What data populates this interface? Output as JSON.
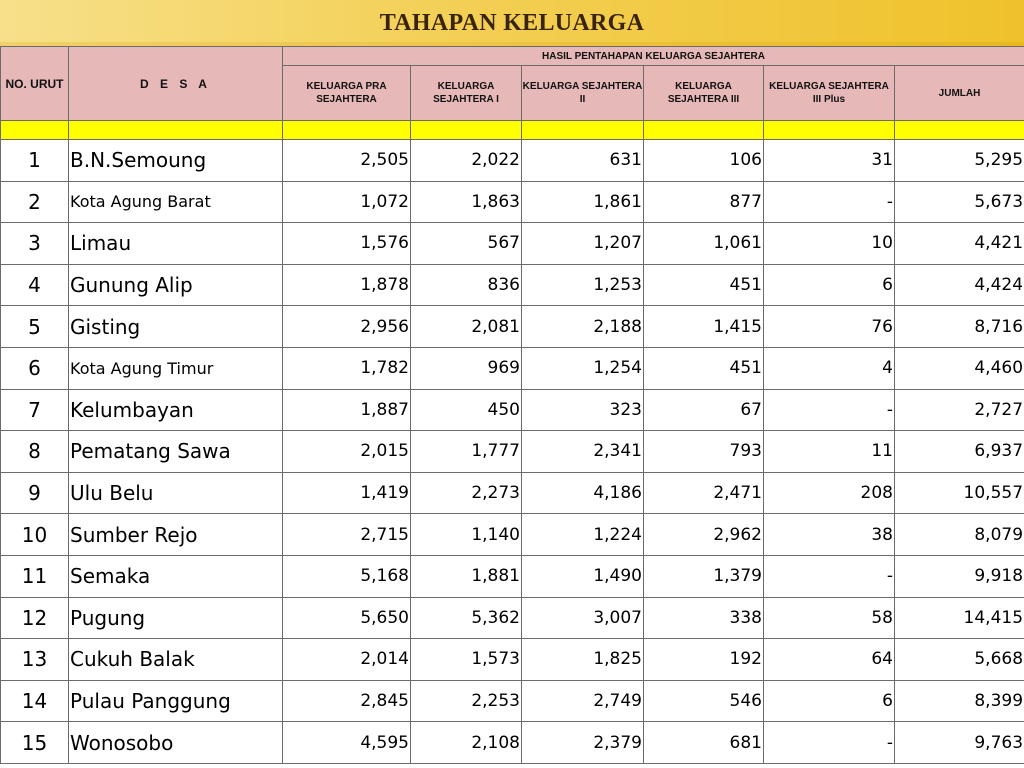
{
  "title": "TAHAPAN KELUARGA",
  "header": {
    "no_urut": "NO. URUT",
    "desa": "D E S A",
    "group": "HASIL PENTAHAPAN KELUARGA SEJAHTERA",
    "columns": [
      "KELUARGA PRA SEJAHTERA",
      "KELUARGA SEJAHTERA I",
      "KELUARGA SEJAHTERA II",
      "KELUARGA SEJAHTERA III",
      "KELUARGA SEJAHTERA III Plus",
      "JUMLAH"
    ]
  },
  "rows": [
    {
      "no": "1",
      "desa": "B.N.Semoung",
      "pra": "2,505",
      "ks1": "2,022",
      "ks2": "631",
      "ks3": "106",
      "ks3p": "31",
      "jumlah": "5,295"
    },
    {
      "no": "2",
      "desa": "Kota Agung Barat",
      "pra": "1,072",
      "ks1": "1,863",
      "ks2": "1,861",
      "ks3": "877",
      "ks3p": "-",
      "jumlah": "5,673"
    },
    {
      "no": "3",
      "desa": "Limau",
      "pra": "1,576",
      "ks1": "567",
      "ks2": "1,207",
      "ks3": "1,061",
      "ks3p": "10",
      "jumlah": "4,421"
    },
    {
      "no": "4",
      "desa": "Gunung Alip",
      "pra": "1,878",
      "ks1": "836",
      "ks2": "1,253",
      "ks3": "451",
      "ks3p": "6",
      "jumlah": "4,424"
    },
    {
      "no": "5",
      "desa": "Gisting",
      "pra": "2,956",
      "ks1": "2,081",
      "ks2": "2,188",
      "ks3": "1,415",
      "ks3p": "76",
      "jumlah": "8,716"
    },
    {
      "no": "6",
      "desa": "Kota Agung Timur",
      "pra": "1,782",
      "ks1": "969",
      "ks2": "1,254",
      "ks3": "451",
      "ks3p": "4",
      "jumlah": "4,460"
    },
    {
      "no": "7",
      "desa": "Kelumbayan",
      "pra": "1,887",
      "ks1": "450",
      "ks2": "323",
      "ks3": "67",
      "ks3p": "-",
      "jumlah": "2,727"
    },
    {
      "no": "8",
      "desa": "Pematang Sawa",
      "pra": "2,015",
      "ks1": "1,777",
      "ks2": "2,341",
      "ks3": "793",
      "ks3p": "11",
      "jumlah": "6,937"
    },
    {
      "no": "9",
      "desa": "Ulu Belu",
      "pra": "1,419",
      "ks1": "2,273",
      "ks2": "4,186",
      "ks3": "2,471",
      "ks3p": "208",
      "jumlah": "10,557"
    },
    {
      "no": "10",
      "desa": "Sumber Rejo",
      "pra": "2,715",
      "ks1": "1,140",
      "ks2": "1,224",
      "ks3": "2,962",
      "ks3p": "38",
      "jumlah": "8,079"
    },
    {
      "no": "11",
      "desa": "Semaka",
      "pra": "5,168",
      "ks1": "1,881",
      "ks2": "1,490",
      "ks3": "1,379",
      "ks3p": "-",
      "jumlah": "9,918"
    },
    {
      "no": "12",
      "desa": "Pugung",
      "pra": "5,650",
      "ks1": "5,362",
      "ks2": "3,007",
      "ks3": "338",
      "ks3p": "58",
      "jumlah": "14,415"
    },
    {
      "no": "13",
      "desa": "Cukuh Balak",
      "pra": "2,014",
      "ks1": "1,573",
      "ks2": "1,825",
      "ks3": "192",
      "ks3p": "64",
      "jumlah": "5,668"
    },
    {
      "no": "14",
      "desa": "Pulau Panggung",
      "pra": "2,845",
      "ks1": "2,253",
      "ks2": "2,749",
      "ks3": "546",
      "ks3p": "6",
      "jumlah": "8,399"
    },
    {
      "no": "15",
      "desa": "Wonosobo",
      "pra": "4,595",
      "ks1": "2,108",
      "ks2": "2,379",
      "ks3": "681",
      "ks3p": "-",
      "jumlah": "9,763"
    }
  ],
  "colors": {
    "header_bg": "#e6b9b8",
    "title_band": "#f3cf54",
    "spacer_row": "#ffff00"
  }
}
